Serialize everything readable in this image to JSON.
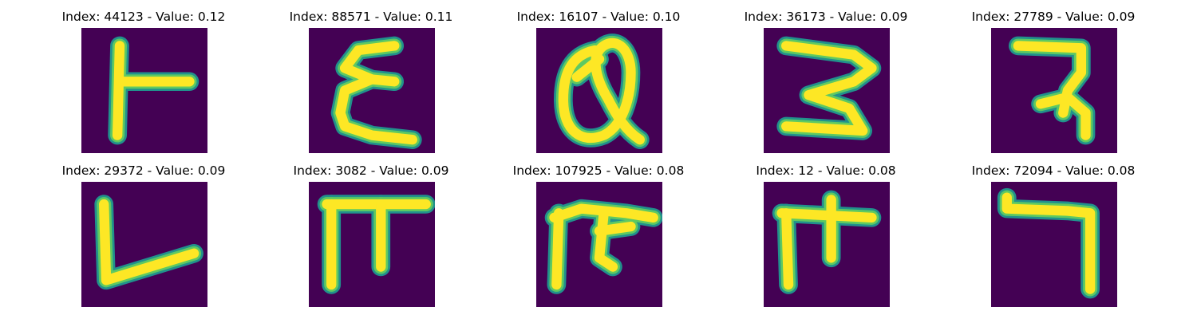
{
  "colors": {
    "background": "#440154",
    "stroke_core": "#fde725",
    "stroke_mid": "#5ec962",
    "stroke_edge": "#21918c"
  },
  "panels": [
    {
      "index": "44123",
      "value": "0.12",
      "title": "Index: 44123 - Value: 0.12",
      "glyph": "left-tack-letter-image"
    },
    {
      "index": "88571",
      "value": "0.11",
      "title": "Index: 88571 - Value: 0.11",
      "glyph": "epsilon-letter-image"
    },
    {
      "index": "16107",
      "value": "0.10",
      "title": "Index: 16107 - Value: 0.10",
      "glyph": "alpha-loop-letter-image"
    },
    {
      "index": "36173",
      "value": "0.09",
      "title": "Index: 36173 - Value: 0.09",
      "glyph": "three-letter-image"
    },
    {
      "index": "27789",
      "value": "0.09",
      "title": "Index: 27789 - Value: 0.09",
      "glyph": "hook-letter-image"
    },
    {
      "index": "29372",
      "value": "0.09",
      "title": "Index: 29372 - Value: 0.09",
      "glyph": "l-shape-letter-image"
    },
    {
      "index": "3082",
      "value": "0.09",
      "title": "Index: 3082 - Value: 0.09",
      "glyph": "pi-shape-letter-image"
    },
    {
      "index": "107925",
      "value": "0.08",
      "title": "Index: 107925 - Value: 0.08",
      "glyph": "pi-variant-letter-image"
    },
    {
      "index": "12",
      "value": "0.08",
      "title": "Index: 12 - Value: 0.08",
      "glyph": "cross-bar-letter-image"
    },
    {
      "index": "72094",
      "value": "0.08",
      "title": "Index: 72094 - Value: 0.08",
      "glyph": "reversed-l-letter-image"
    }
  ]
}
